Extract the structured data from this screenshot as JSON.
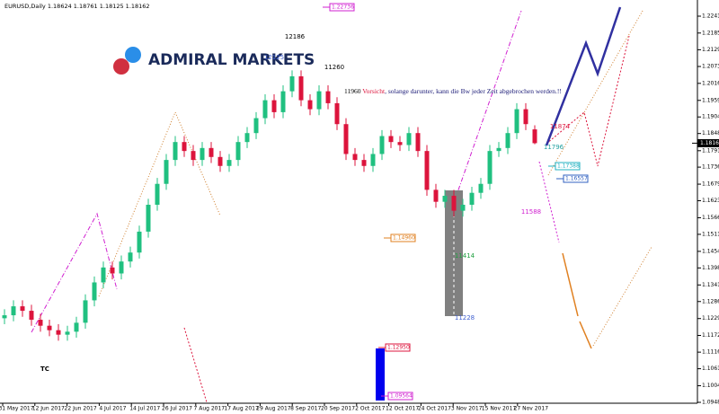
{
  "chart_data": {
    "type": "candlestick",
    "title": "EURUSD,Daily 1.18624 1.18761 1.18125 1.18162",
    "logo": "ADMIRAL MARKETS",
    "ylim": [
      1.09485,
      1.22956
    ],
    "yticks": [
      {
        "value": 1.22415,
        "label": "1.22415"
      },
      {
        "value": 1.2185,
        "label": "1.21850"
      },
      {
        "value": 1.2129,
        "label": "1.21290"
      },
      {
        "value": 1.2073,
        "label": "1.20730"
      },
      {
        "value": 1.20165,
        "label": "1.20165"
      },
      {
        "value": 1.19595,
        "label": "1.19595"
      },
      {
        "value": 1.1904,
        "label": "1.19040"
      },
      {
        "value": 1.18485,
        "label": "1.18485"
      },
      {
        "value": 1.1791,
        "label": "1.17910"
      },
      {
        "value": 1.1736,
        "label": "1.17360"
      },
      {
        "value": 1.1679,
        "label": "1.16790"
      },
      {
        "value": 1.16235,
        "label": "1.16235"
      },
      {
        "value": 1.15665,
        "label": "1.15665"
      },
      {
        "value": 1.1511,
        "label": "1.15110"
      },
      {
        "value": 1.1454,
        "label": "1.14540"
      },
      {
        "value": 1.13985,
        "label": "1.13985"
      },
      {
        "value": 1.13415,
        "label": "1.13415"
      },
      {
        "value": 1.1286,
        "label": "1.12860"
      },
      {
        "value": 1.1229,
        "label": "1.12290"
      },
      {
        "value": 1.11725,
        "label": "1.11725"
      },
      {
        "value": 1.11165,
        "label": "1.11165"
      },
      {
        "value": 1.1061,
        "label": "1.10610"
      },
      {
        "value": 1.1004,
        "label": "1.10040"
      },
      {
        "value": 1.09485,
        "label": "1.09485"
      }
    ],
    "price_label": {
      "value": 1.18162,
      "label": "1.18162"
    },
    "x_labels": [
      "31 May 2017",
      "12 Jun 2017",
      "22 Jun 2017",
      "4 Jul 2017",
      "14 Jul 2017",
      "26 Jul 2017",
      "7 Aug 2017",
      "17 Aug 2017",
      "29 Aug 2017",
      "8 Sep 2017",
      "20 Sep 2017",
      "2 Oct 2017",
      "12 Oct 2017",
      "24 Oct 2017",
      "3 Nov 2017",
      "15 Nov 2017",
      "27 Nov 2017"
    ],
    "bull_color": "#20c080",
    "bear_color": "#dc143c",
    "ohlc": [
      [
        1.123,
        1.126,
        1.121,
        1.124
      ],
      [
        1.124,
        1.129,
        1.122,
        1.127
      ],
      [
        1.127,
        1.129,
        1.1235,
        1.1255
      ],
      [
        1.1255,
        1.1275,
        1.1205,
        1.1225
      ],
      [
        1.1225,
        1.1245,
        1.1185,
        1.1205
      ],
      [
        1.1205,
        1.1225,
        1.117,
        1.119
      ],
      [
        1.119,
        1.121,
        1.1155,
        1.1175
      ],
      [
        1.1175,
        1.1205,
        1.1155,
        1.1185
      ],
      [
        1.1185,
        1.1235,
        1.1165,
        1.1215
      ],
      [
        1.1215,
        1.131,
        1.1195,
        1.129
      ],
      [
        1.129,
        1.137,
        1.127,
        1.135
      ],
      [
        1.135,
        1.142,
        1.133,
        1.14
      ],
      [
        1.14,
        1.142,
        1.136,
        1.138
      ],
      [
        1.138,
        1.144,
        1.136,
        1.142
      ],
      [
        1.142,
        1.147,
        1.14,
        1.145
      ],
      [
        1.145,
        1.154,
        1.143,
        1.152
      ],
      [
        1.152,
        1.163,
        1.15,
        1.161
      ],
      [
        1.161,
        1.17,
        1.159,
        1.168
      ],
      [
        1.168,
        1.178,
        1.166,
        1.176
      ],
      [
        1.176,
        1.184,
        1.174,
        1.182
      ],
      [
        1.182,
        1.184,
        1.177,
        1.179
      ],
      [
        1.179,
        1.181,
        1.174,
        1.176
      ],
      [
        1.176,
        1.182,
        1.174,
        1.18
      ],
      [
        1.18,
        1.182,
        1.175,
        1.177
      ],
      [
        1.177,
        1.179,
        1.172,
        1.174
      ],
      [
        1.174,
        1.178,
        1.172,
        1.176
      ],
      [
        1.176,
        1.184,
        1.174,
        1.182
      ],
      [
        1.182,
        1.187,
        1.18,
        1.185
      ],
      [
        1.185,
        1.192,
        1.183,
        1.19
      ],
      [
        1.19,
        1.198,
        1.188,
        1.196
      ],
      [
        1.196,
        1.198,
        1.19,
        1.192
      ],
      [
        1.192,
        1.201,
        1.19,
        1.199
      ],
      [
        1.199,
        1.206,
        1.197,
        1.204
      ],
      [
        1.204,
        1.206,
        1.194,
        1.196
      ],
      [
        1.196,
        1.198,
        1.191,
        1.193
      ],
      [
        1.193,
        1.201,
        1.191,
        1.199
      ],
      [
        1.199,
        1.201,
        1.193,
        1.195
      ],
      [
        1.195,
        1.197,
        1.186,
        1.188
      ],
      [
        1.188,
        1.19,
        1.176,
        1.178
      ],
      [
        1.178,
        1.18,
        1.174,
        1.176
      ],
      [
        1.176,
        1.178,
        1.172,
        1.174
      ],
      [
        1.174,
        1.18,
        1.172,
        1.178
      ],
      [
        1.178,
        1.186,
        1.176,
        1.184
      ],
      [
        1.184,
        1.186,
        1.18,
        1.182
      ],
      [
        1.182,
        1.184,
        1.179,
        1.181
      ],
      [
        1.181,
        1.187,
        1.179,
        1.185
      ],
      [
        1.185,
        1.187,
        1.177,
        1.179
      ],
      [
        1.179,
        1.181,
        1.164,
        1.166
      ],
      [
        1.166,
        1.168,
        1.16,
        1.162
      ],
      [
        1.162,
        1.166,
        1.16,
        1.164
      ],
      [
        1.164,
        1.166,
        1.157,
        1.159
      ],
      [
        1.159,
        1.163,
        1.157,
        1.161
      ],
      [
        1.161,
        1.167,
        1.159,
        1.165
      ],
      [
        1.165,
        1.17,
        1.163,
        1.168
      ],
      [
        1.168,
        1.181,
        1.166,
        1.179
      ],
      [
        1.179,
        1.182,
        1.177,
        1.18
      ],
      [
        1.18,
        1.187,
        1.178,
        1.185
      ],
      [
        1.185,
        1.195,
        1.183,
        1.193
      ],
      [
        1.193,
        1.195,
        1.186,
        1.188
      ],
      [
        1.18624,
        1.18761,
        1.18125,
        1.18162
      ]
    ],
    "annotations": [
      "12186",
      "12125",
      "11260",
      "TC",
      "11874",
      "11796",
      "11588",
      "11414",
      "11228"
    ],
    "warning": [
      "11960",
      "Vorsicht",
      ", solange darunter, kann die Bw jeder Zeit abgebrochen werden.!!"
    ],
    "level_boxes": [
      "1.22736",
      "1.17388",
      "1.16557",
      "1.14960",
      "1.12950",
      "1.09564"
    ]
  }
}
